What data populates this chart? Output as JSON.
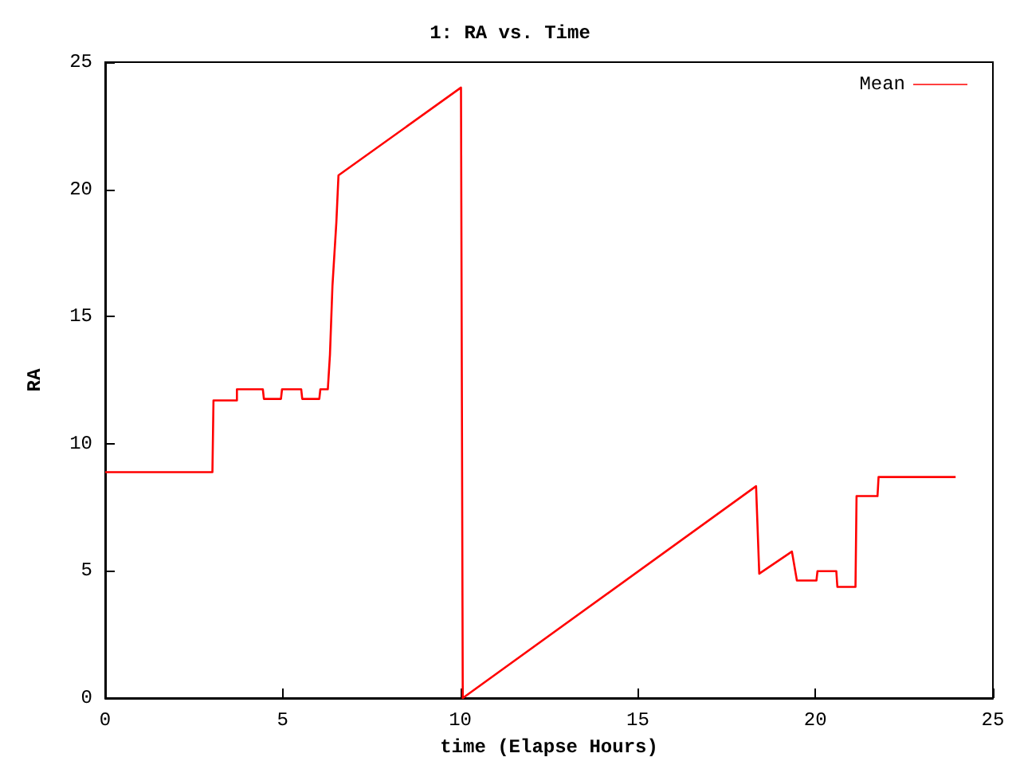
{
  "chart_data": {
    "type": "line",
    "title": "1: RA vs. Time",
    "xlabel": "time (Elapse Hours)",
    "ylabel": "RA",
    "series": [
      {
        "name": "Mean",
        "color": "#ff0000",
        "x": [
          0,
          3.02,
          3.05,
          3.71,
          3.71,
          4.44,
          4.47,
          4.95,
          4.98,
          5.52,
          5.55,
          6.03,
          6.06,
          6.27,
          6.33,
          6.4,
          6.51,
          6.57,
          10.02,
          10.07,
          18.33,
          18.42,
          19.34,
          19.48,
          20.03,
          20.06,
          20.59,
          20.62,
          21.13,
          21.16,
          21.75,
          21.78,
          23.95
        ],
        "values": [
          8.88,
          8.88,
          11.7,
          11.7,
          12.14,
          12.14,
          11.76,
          11.76,
          12.14,
          12.14,
          11.76,
          11.76,
          12.14,
          12.14,
          13.5,
          16.2,
          18.7,
          20.55,
          24.0,
          0,
          8.33,
          4.89,
          5.76,
          4.62,
          4.62,
          4.99,
          4.99,
          4.37,
          4.37,
          7.94,
          7.94,
          8.69,
          8.69
        ]
      }
    ],
    "xlim": [
      0,
      25
    ],
    "xticks": [
      0,
      5,
      10,
      15,
      20,
      25
    ],
    "ylim": [
      0,
      25
    ],
    "yticks": [
      0,
      5,
      10,
      15,
      20,
      25
    ],
    "grid": false,
    "legend": "top right",
    "marker": "none",
    "line_style": "solid"
  }
}
